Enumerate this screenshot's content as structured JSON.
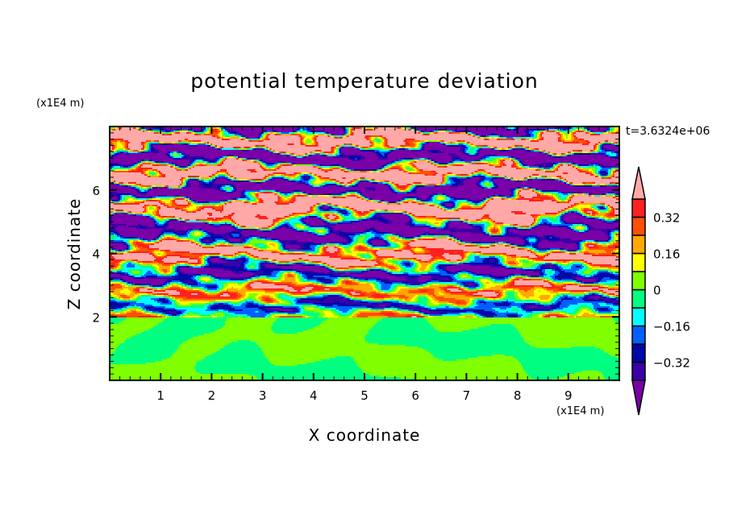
{
  "chart_data": {
    "type": "heatmap",
    "title": "potential temperature deviation",
    "xlabel": "X coordinate",
    "ylabel": "Z coordinate",
    "x_unit": "(x1E4 m)",
    "y_unit": "(x1E4 m)",
    "time_label": "t=3.6324e+06",
    "xlim": [
      0,
      10
    ],
    "ylim": [
      0,
      8
    ],
    "x_ticks": [
      "1",
      "2",
      "3",
      "4",
      "5",
      "6",
      "7",
      "8",
      "9"
    ],
    "y_ticks": [
      "2",
      "4",
      "6"
    ],
    "colorbar": {
      "levels": [
        -0.4,
        -0.32,
        -0.24,
        -0.16,
        -0.08,
        0,
        0.08,
        0.16,
        0.24,
        0.32,
        0.4
      ],
      "colors": [
        "#7a00a8",
        "#3a00a8",
        "#0008a8",
        "#0060ff",
        "#00ffff",
        "#00ff80",
        "#80ff00",
        "#ffff00",
        "#ffa800",
        "#ff5000",
        "#ff2020",
        "#ffa8a8"
      ],
      "tick_labels": [
        {
          "value": 0.32,
          "label": "0.32"
        },
        {
          "value": 0.16,
          "label": "0.16"
        },
        {
          "value": 0,
          "label": "0"
        },
        {
          "value": -0.16,
          "label": "−0.16"
        },
        {
          "value": -0.32,
          "label": "−0.32"
        }
      ],
      "extend": "both"
    },
    "description_of_field": {
      "lower_layer_z_range": [
        0,
        2
      ],
      "lower_layer_value_range": [
        -0.08,
        0.08
      ],
      "middle_layer_z_range": [
        2,
        5
      ],
      "upper_layer_z_range": [
        5,
        8
      ],
      "upper_layer_values": [
        -0.45,
        0.45
      ]
    }
  }
}
